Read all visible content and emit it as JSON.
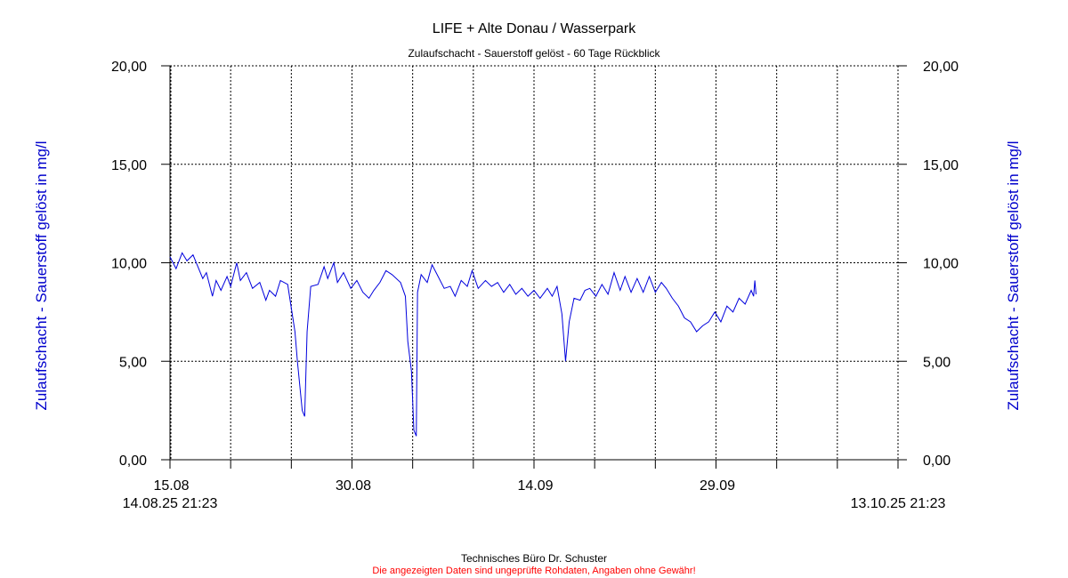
{
  "chart_data": {
    "type": "line",
    "title": "LIFE + Alte Donau / Wasserpark",
    "subtitle": "Zulaufschacht - Sauerstoff gelöst - 60 Tage Rückblick",
    "ylabel_left": "Zulaufschacht - Sauerstoff gelöst in mg/l",
    "ylabel_right": "Zulaufschacht - Sauerstoff gelöst in mg/l",
    "ylim": [
      0,
      20
    ],
    "y_ticks": [
      {
        "value": 0,
        "label": "0,00"
      },
      {
        "value": 5,
        "label": "5,00"
      },
      {
        "value": 10,
        "label": "10,00"
      },
      {
        "value": 15,
        "label": "15,00"
      },
      {
        "value": 20,
        "label": "20,00"
      }
    ],
    "x_range_days": [
      0,
      60
    ],
    "x_tick_days": [
      0,
      5,
      10,
      15,
      20,
      25,
      30,
      35,
      40,
      45,
      50,
      55,
      60
    ],
    "x_labels": [
      {
        "day": 0.11,
        "label": "15.08"
      },
      {
        "day": 15.11,
        "label": "30.08"
      },
      {
        "day": 30.11,
        "label": "14.09"
      },
      {
        "day": 45.11,
        "label": "29.09"
      }
    ],
    "x_start_label": "14.08.25 21:23",
    "x_end_label": "13.10.25 21:23",
    "grid": true,
    "line_color": "#0000dd",
    "series": [
      {
        "name": "",
        "points": [
          [
            0.0,
            10.3
          ],
          [
            0.5,
            9.7
          ],
          [
            1.0,
            10.5
          ],
          [
            1.4,
            10.1
          ],
          [
            1.9,
            10.4
          ],
          [
            2.3,
            9.8
          ],
          [
            2.7,
            9.2
          ],
          [
            3.0,
            9.5
          ],
          [
            3.5,
            8.3
          ],
          [
            3.8,
            9.1
          ],
          [
            4.2,
            8.6
          ],
          [
            4.7,
            9.3
          ],
          [
            5.0,
            8.8
          ],
          [
            5.5,
            10.0
          ],
          [
            5.8,
            9.1
          ],
          [
            6.3,
            9.5
          ],
          [
            6.8,
            8.7
          ],
          [
            7.4,
            9.0
          ],
          [
            7.9,
            8.1
          ],
          [
            8.2,
            8.6
          ],
          [
            8.7,
            8.3
          ],
          [
            9.1,
            9.1
          ],
          [
            9.7,
            8.9
          ],
          [
            10.3,
            6.5
          ],
          [
            10.5,
            5.0
          ],
          [
            10.9,
            2.5
          ],
          [
            11.1,
            2.2
          ],
          [
            11.3,
            6.5
          ],
          [
            11.6,
            8.8
          ],
          [
            12.2,
            8.9
          ],
          [
            12.7,
            9.8
          ],
          [
            13.0,
            9.2
          ],
          [
            13.5,
            10.0
          ],
          [
            13.8,
            9.0
          ],
          [
            14.3,
            9.5
          ],
          [
            14.9,
            8.7
          ],
          [
            15.4,
            9.1
          ],
          [
            15.9,
            8.5
          ],
          [
            16.4,
            8.2
          ],
          [
            16.8,
            8.6
          ],
          [
            17.3,
            9.0
          ],
          [
            17.8,
            9.6
          ],
          [
            18.3,
            9.4
          ],
          [
            19.0,
            9.0
          ],
          [
            19.4,
            8.3
          ],
          [
            19.6,
            6.0
          ],
          [
            19.9,
            4.5
          ],
          [
            20.1,
            1.5
          ],
          [
            20.3,
            1.2
          ],
          [
            20.4,
            8.5
          ],
          [
            20.7,
            9.4
          ],
          [
            21.2,
            9.0
          ],
          [
            21.6,
            9.9
          ],
          [
            22.1,
            9.3
          ],
          [
            22.6,
            8.7
          ],
          [
            23.1,
            8.8
          ],
          [
            23.5,
            8.3
          ],
          [
            24.0,
            9.1
          ],
          [
            24.5,
            8.8
          ],
          [
            24.9,
            9.6
          ],
          [
            25.4,
            8.7
          ],
          [
            26.0,
            9.1
          ],
          [
            26.5,
            8.8
          ],
          [
            27.0,
            9.0
          ],
          [
            27.5,
            8.5
          ],
          [
            28.0,
            8.9
          ],
          [
            28.5,
            8.4
          ],
          [
            29.0,
            8.7
          ],
          [
            29.5,
            8.3
          ],
          [
            30.0,
            8.6
          ],
          [
            30.5,
            8.2
          ],
          [
            31.1,
            8.7
          ],
          [
            31.5,
            8.3
          ],
          [
            31.9,
            8.8
          ],
          [
            32.3,
            7.4
          ],
          [
            32.6,
            5.0
          ],
          [
            32.9,
            7.0
          ],
          [
            33.3,
            8.2
          ],
          [
            33.8,
            8.1
          ],
          [
            34.2,
            8.6
          ],
          [
            34.6,
            8.7
          ],
          [
            35.1,
            8.3
          ],
          [
            35.6,
            8.9
          ],
          [
            36.1,
            8.4
          ],
          [
            36.6,
            9.5
          ],
          [
            37.1,
            8.6
          ],
          [
            37.5,
            9.3
          ],
          [
            38.0,
            8.5
          ],
          [
            38.5,
            9.2
          ],
          [
            39.0,
            8.5
          ],
          [
            39.5,
            9.3
          ],
          [
            40.0,
            8.5
          ],
          [
            40.5,
            9.0
          ],
          [
            40.9,
            8.7
          ],
          [
            41.4,
            8.2
          ],
          [
            41.9,
            7.8
          ],
          [
            42.4,
            7.2
          ],
          [
            42.9,
            7.0
          ],
          [
            43.4,
            6.5
          ],
          [
            43.9,
            6.8
          ],
          [
            44.4,
            7.0
          ],
          [
            44.9,
            7.5
          ],
          [
            45.4,
            7.0
          ],
          [
            45.9,
            7.8
          ],
          [
            46.4,
            7.5
          ],
          [
            46.9,
            8.2
          ],
          [
            47.4,
            7.9
          ],
          [
            47.9,
            8.6
          ],
          [
            48.1,
            8.3
          ],
          [
            48.2,
            9.1
          ],
          [
            48.3,
            8.4
          ]
        ]
      }
    ]
  },
  "footer": {
    "company": "Technisches Büro Dr. Schuster",
    "disclaimer": "Die angezeigten Daten sind ungeprüfte Rohdaten, Angaben ohne Gewähr!"
  }
}
